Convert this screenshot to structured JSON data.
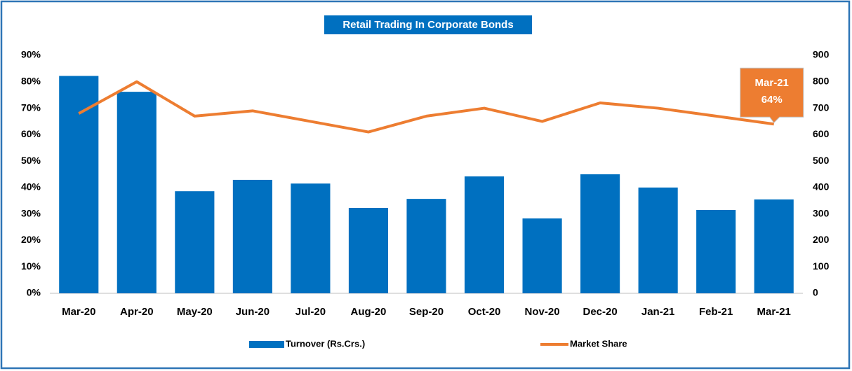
{
  "chart_data": {
    "type": "bar-line",
    "title": "Retail Trading In Corporate Bonds",
    "categories": [
      "Mar-20",
      "Apr-20",
      "May-20",
      "Jun-20",
      "Jul-20",
      "Aug-20",
      "Sep-20",
      "Oct-20",
      "Nov-20",
      "Dec-20",
      "Jan-21",
      "Feb-21",
      "Mar-21"
    ],
    "series": [
      {
        "name": "Turnover (Rs.Crs.)",
        "type": "bar",
        "axis": "y2",
        "color": "#0070c0",
        "values": [
          822,
          762,
          386,
          429,
          415,
          323,
          357,
          442,
          283,
          450,
          400,
          315,
          355
        ]
      },
      {
        "name": "Market Share",
        "type": "line",
        "axis": "y",
        "color": "#ed7d31",
        "values": [
          68,
          80,
          67,
          69,
          65,
          61,
          67,
          70,
          65,
          72,
          70,
          67,
          64
        ],
        "value_labels": [
          null,
          null,
          null,
          null,
          null,
          null,
          null,
          null,
          null,
          null,
          null,
          null,
          "64%"
        ]
      }
    ],
    "ylim": [
      0,
      90
    ],
    "yticks": [
      {
        "value": 0,
        "label": "0%"
      },
      {
        "value": 10,
        "label": "10%"
      },
      {
        "value": 20,
        "label": "20%"
      },
      {
        "value": 30,
        "label": "30%"
      },
      {
        "value": 40,
        "label": "40%"
      },
      {
        "value": 50,
        "label": "50%"
      },
      {
        "value": 60,
        "label": "60%"
      },
      {
        "value": 70,
        "label": "70%"
      },
      {
        "value": 80,
        "label": "80%"
      },
      {
        "value": 90,
        "label": "90%"
      }
    ],
    "y2lim": [
      0,
      900
    ],
    "y2ticks": [
      0,
      100,
      200,
      300,
      400,
      500,
      600,
      700,
      800,
      900
    ],
    "legend": "bottom"
  }
}
